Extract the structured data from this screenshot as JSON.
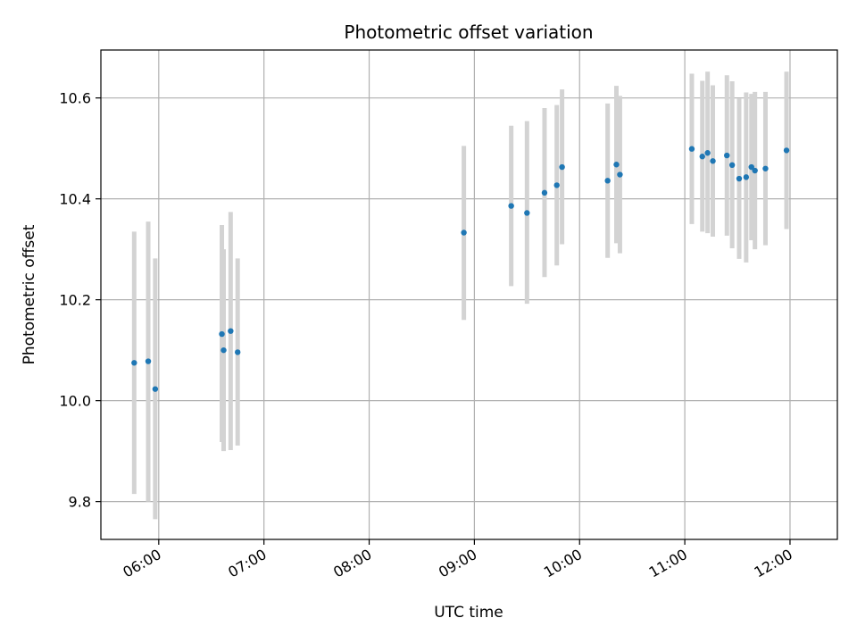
{
  "chart_data": {
    "type": "scatter",
    "title": "Photometric offset variation",
    "xlabel": "UTC time",
    "ylabel": "Photometric offset",
    "x_ticks": [
      "06:00",
      "07:00",
      "08:00",
      "09:00",
      "10:00",
      "11:00",
      "12:00"
    ],
    "y_ticks": [
      "9.8",
      "10.0",
      "10.2",
      "10.4",
      "10.6"
    ],
    "xlim": [
      "05:27",
      "12:27"
    ],
    "ylim": [
      9.725,
      10.695
    ],
    "grid": true,
    "legend": "none",
    "colors": {
      "point": "#1f77b4",
      "errorbar": "#d3d3d3",
      "grid": "#b0b0b0"
    },
    "series": [
      {
        "points": [
          {
            "t": "05:46",
            "y": 10.075,
            "lo": 9.815,
            "hi": 10.335
          },
          {
            "t": "05:54",
            "y": 10.078,
            "lo": 9.8,
            "hi": 10.355
          },
          {
            "t": "05:58",
            "y": 10.023,
            "lo": 9.765,
            "hi": 10.282
          },
          {
            "t": "06:36",
            "y": 10.132,
            "lo": 9.918,
            "hi": 10.348
          },
          {
            "t": "06:37",
            "y": 10.1,
            "lo": 9.9,
            "hi": 10.3
          },
          {
            "t": "06:41",
            "y": 10.138,
            "lo": 9.902,
            "hi": 10.374
          },
          {
            "t": "06:45",
            "y": 10.096,
            "lo": 9.911,
            "hi": 10.282
          },
          {
            "t": "08:54",
            "y": 10.333,
            "lo": 10.16,
            "hi": 10.505
          },
          {
            "t": "09:21",
            "y": 10.386,
            "lo": 10.227,
            "hi": 10.545
          },
          {
            "t": "09:30",
            "y": 10.372,
            "lo": 10.192,
            "hi": 10.554
          },
          {
            "t": "09:40",
            "y": 10.412,
            "lo": 10.245,
            "hi": 10.58
          },
          {
            "t": "09:47",
            "y": 10.427,
            "lo": 10.268,
            "hi": 10.586
          },
          {
            "t": "09:50",
            "y": 10.463,
            "lo": 10.31,
            "hi": 10.617
          },
          {
            "t": "10:16",
            "y": 10.436,
            "lo": 10.283,
            "hi": 10.589
          },
          {
            "t": "10:21",
            "y": 10.468,
            "lo": 10.312,
            "hi": 10.624
          },
          {
            "t": "10:23",
            "y": 10.448,
            "lo": 10.292,
            "hi": 10.604
          },
          {
            "t": "11:04",
            "y": 10.499,
            "lo": 10.35,
            "hi": 10.648
          },
          {
            "t": "11:10",
            "y": 10.484,
            "lo": 10.335,
            "hi": 10.634
          },
          {
            "t": "11:13",
            "y": 10.491,
            "lo": 10.332,
            "hi": 10.652
          },
          {
            "t": "11:16",
            "y": 10.475,
            "lo": 10.325,
            "hi": 10.625
          },
          {
            "t": "11:24",
            "y": 10.486,
            "lo": 10.327,
            "hi": 10.645
          },
          {
            "t": "11:27",
            "y": 10.467,
            "lo": 10.302,
            "hi": 10.633
          },
          {
            "t": "11:31",
            "y": 10.44,
            "lo": 10.281,
            "hi": 10.599
          },
          {
            "t": "11:35",
            "y": 10.443,
            "lo": 10.274,
            "hi": 10.611
          },
          {
            "t": "11:38",
            "y": 10.463,
            "lo": 10.318,
            "hi": 10.608
          },
          {
            "t": "11:40",
            "y": 10.456,
            "lo": 10.3,
            "hi": 10.612
          },
          {
            "t": "11:46",
            "y": 10.46,
            "lo": 10.308,
            "hi": 10.612
          },
          {
            "t": "11:58",
            "y": 10.496,
            "lo": 10.34,
            "hi": 10.652
          }
        ]
      }
    ]
  }
}
